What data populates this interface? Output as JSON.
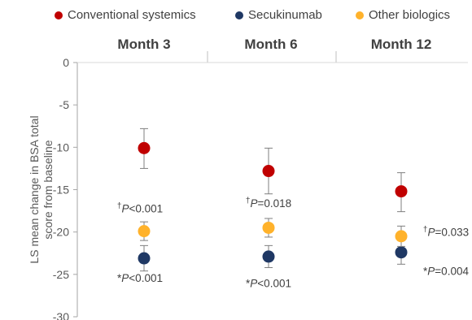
{
  "chart_data": {
    "type": "scatter",
    "categories": [
      "Month 3",
      "Month 6",
      "Month 12"
    ],
    "ylabel": "LS mean change in BSA total score from baseline",
    "ylim": [
      -30,
      0
    ],
    "y_ticks": [
      "0",
      "-5",
      "-10",
      "-15",
      "-20",
      "-25",
      "-30"
    ],
    "legend_position": "top",
    "grid": false,
    "series": [
      {
        "name": "Conventional systemics",
        "color": "#c00000",
        "values": [
          -10.1,
          -12.8,
          -15.2
        ],
        "err_low": [
          -12.5,
          -15.5,
          -17.6
        ],
        "err_high": [
          -7.8,
          -10.1,
          -13.0
        ]
      },
      {
        "name": "Secukinumab",
        "color": "#1f3864",
        "values": [
          -23.1,
          -22.9,
          -22.4
        ],
        "err_low": [
          -24.6,
          -24.2,
          -23.8
        ],
        "err_high": [
          -21.6,
          -21.6,
          -21.0
        ]
      },
      {
        "name": "Other biologics",
        "color": "#ffb22b",
        "values": [
          -19.9,
          -19.5,
          -20.5
        ],
        "err_low": [
          -21.0,
          -20.6,
          -21.7
        ],
        "err_high": [
          -18.8,
          -18.4,
          -19.3
        ]
      }
    ],
    "annotations": [
      {
        "cat": 0,
        "dagger": "†",
        "text": "P<0.001",
        "y": -17.2
      },
      {
        "cat": 0,
        "dagger": "*",
        "text": "P<0.001",
        "y": -25.4
      },
      {
        "cat": 1,
        "dagger": "†",
        "text": "P=0.018",
        "y": -16.6
      },
      {
        "cat": 1,
        "dagger": "*",
        "text": "P<0.001",
        "y": -26.0
      },
      {
        "cat": 2,
        "dagger": "†",
        "text": "P=0.033",
        "y": -20.0
      },
      {
        "cat": 2,
        "dagger": "*",
        "text": "P=0.004",
        "y": -24.6
      }
    ]
  }
}
